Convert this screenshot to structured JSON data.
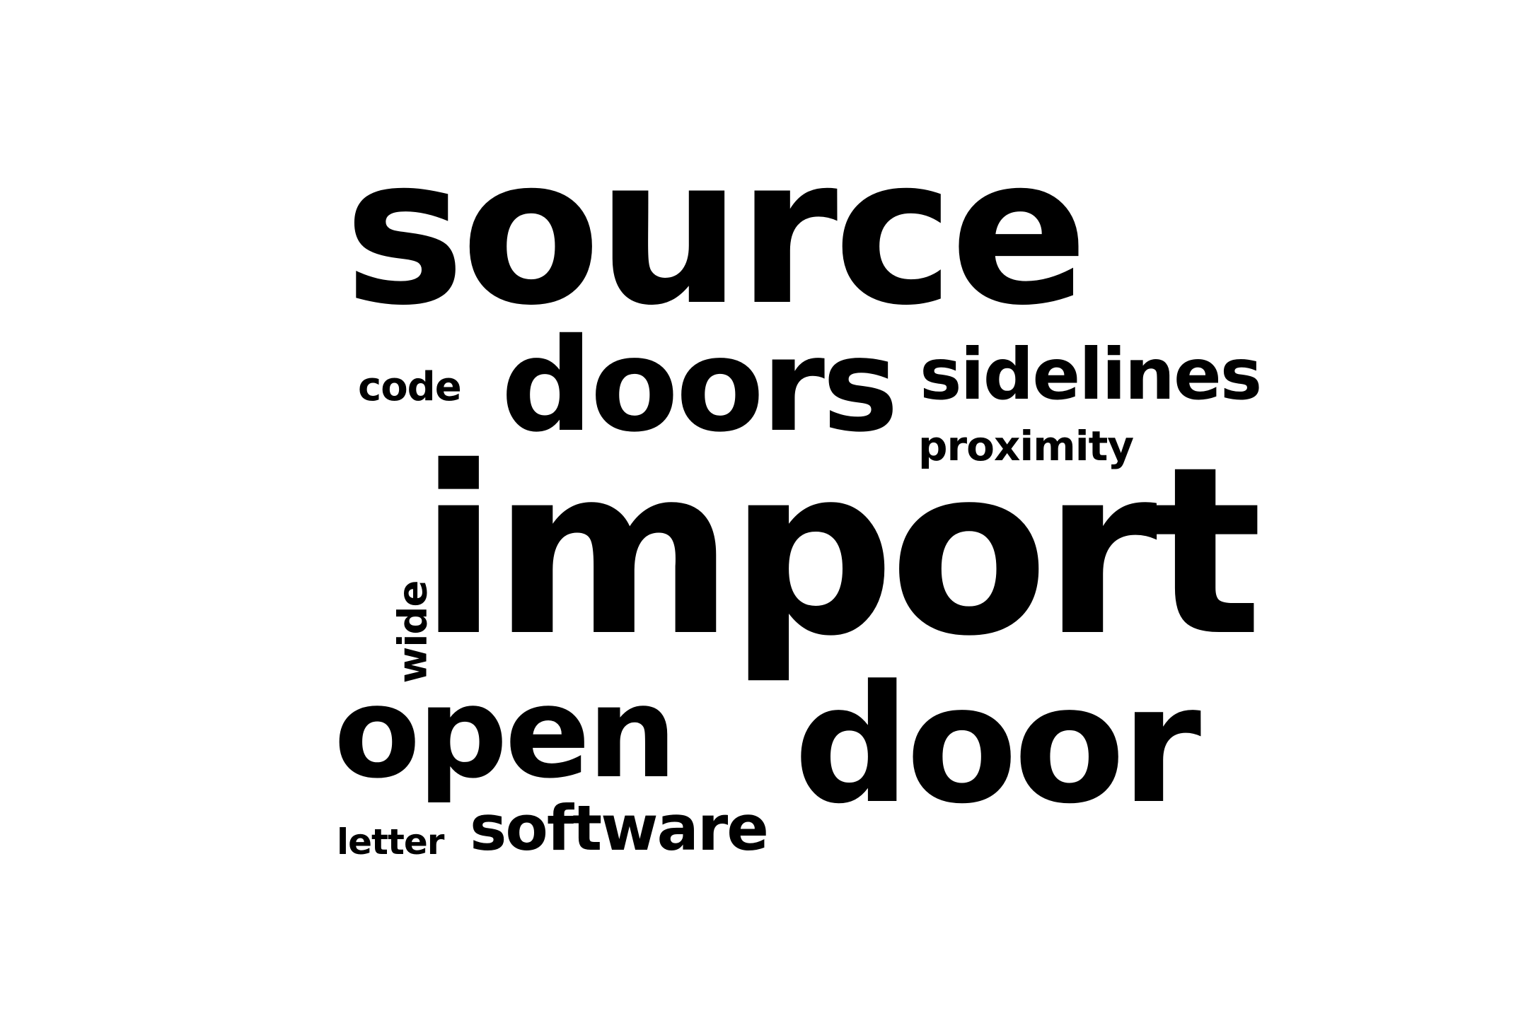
{
  "word_cloud": {
    "text_color": "#000000",
    "background_color": "#ffffff",
    "words": {
      "source": "source",
      "code": "code",
      "doors": "doors",
      "sidelines": "sidelines",
      "proximity": "proximity",
      "wide": "wide",
      "import": "import",
      "open": "open",
      "door": "door",
      "letter": "letter",
      "software": "software"
    }
  }
}
